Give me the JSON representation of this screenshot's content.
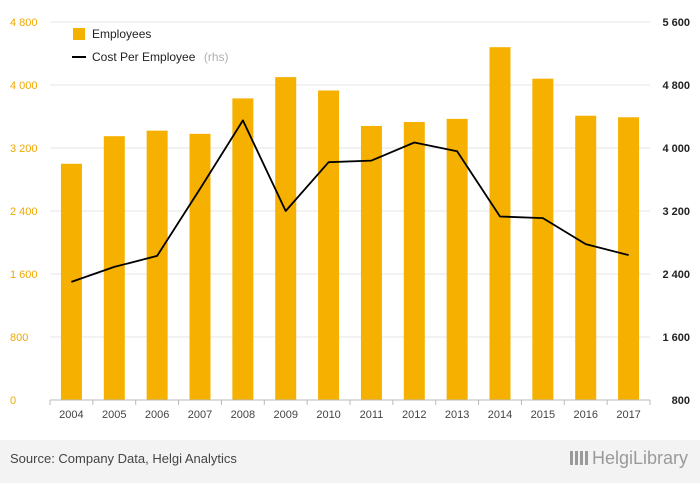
{
  "chart_data": {
    "type": "bar+line",
    "categories": [
      "2004",
      "2005",
      "2006",
      "2007",
      "2008",
      "2009",
      "2010",
      "2011",
      "2012",
      "2013",
      "2014",
      "2015",
      "2016",
      "2017"
    ],
    "series": [
      {
        "name": "Employees",
        "type": "bar",
        "axis": "left",
        "color": "#f5b000",
        "values": [
          3000,
          3350,
          3420,
          3380,
          3830,
          4100,
          3930,
          3480,
          3530,
          3570,
          4480,
          4080,
          3610,
          3590
        ]
      },
      {
        "name": "Cost Per Employee",
        "name_suffix": "(rhs)",
        "type": "line",
        "axis": "right",
        "color": "#000000",
        "values": [
          2300,
          2490,
          2630,
          3480,
          4350,
          3200,
          3820,
          3840,
          4070,
          3960,
          3130,
          3110,
          2780,
          2640
        ]
      }
    ],
    "y_left": {
      "min": 0,
      "max": 4800,
      "ticks": [
        "0",
        "800",
        "1 600",
        "2 400",
        "3 200",
        "4 000",
        "4 800"
      ],
      "color": "#f0a800"
    },
    "y_right": {
      "min": 800,
      "max": 5600,
      "ticks": [
        "800",
        "1 600",
        "2 400",
        "3 200",
        "4 000",
        "4 800",
        "5 600"
      ],
      "color": "#222222"
    },
    "grid": true,
    "legend_position": "top-left"
  },
  "footer": {
    "source": "Source: Company Data, Helgi Analytics",
    "brand": "HelgiLibrary"
  }
}
